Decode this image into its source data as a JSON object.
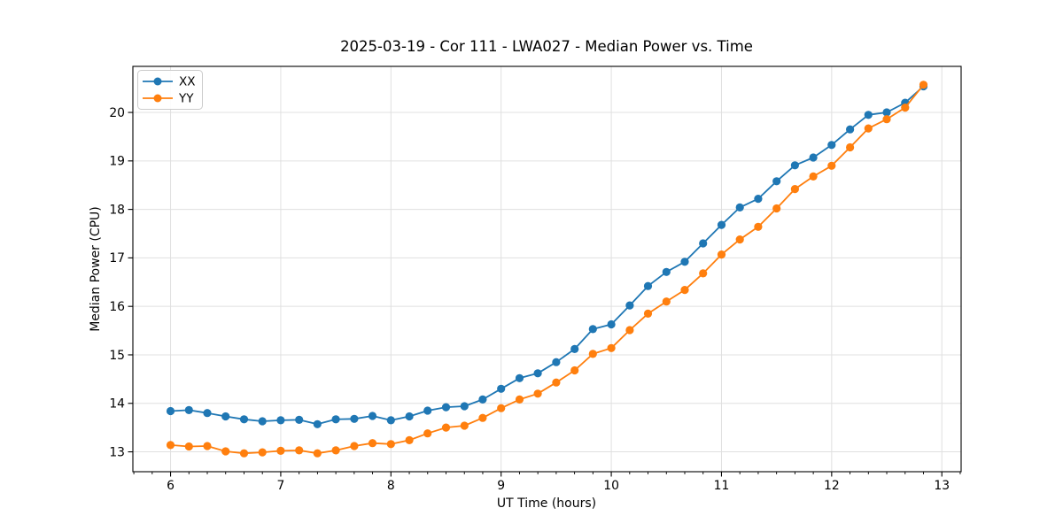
{
  "chart_data": {
    "type": "line",
    "title": "2025-03-19 - Cor 111 - LWA027 - Median Power vs. Time",
    "xlabel": "UT Time (hours)",
    "ylabel": "Median Power (CPU)",
    "xlim": [
      5.658,
      13.175
    ],
    "ylim": [
      12.59,
      20.95
    ],
    "xticks": [
      6,
      7,
      8,
      9,
      10,
      11,
      12,
      13
    ],
    "yticks": [
      13,
      14,
      15,
      16,
      17,
      18,
      19,
      20
    ],
    "x_minor_ticks_per_major": 6,
    "grid": true,
    "grid_color": "#e0e0e0",
    "frame_color": "#000000",
    "legend": {
      "position": "upper-left"
    },
    "x": [
      6.0,
      6.167,
      6.333,
      6.5,
      6.667,
      6.833,
      7.0,
      7.167,
      7.333,
      7.5,
      7.667,
      7.833,
      8.0,
      8.167,
      8.333,
      8.5,
      8.667,
      8.833,
      9.0,
      9.167,
      9.333,
      9.5,
      9.667,
      9.833,
      10.0,
      10.167,
      10.333,
      10.5,
      10.667,
      10.833,
      11.0,
      11.167,
      11.333,
      11.5,
      11.667,
      11.833,
      12.0,
      12.167,
      12.333,
      12.5,
      12.667,
      12.833
    ],
    "series": [
      {
        "name": "XX",
        "color": "#1f77b4",
        "marker": "circle",
        "values": [
          13.84,
          13.86,
          13.8,
          13.73,
          13.67,
          13.63,
          13.65,
          13.66,
          13.57,
          13.67,
          13.68,
          13.74,
          13.65,
          13.73,
          13.85,
          13.92,
          13.94,
          14.08,
          14.3,
          14.52,
          14.62,
          14.85,
          15.12,
          15.53,
          15.63,
          16.02,
          16.42,
          16.71,
          16.92,
          17.3,
          17.68,
          18.04,
          18.22,
          18.58,
          18.91,
          19.07,
          19.33,
          19.65,
          19.95,
          20.0,
          20.2,
          20.54
        ]
      },
      {
        "name": "YY",
        "color": "#ff7f0e",
        "marker": "circle",
        "values": [
          13.14,
          13.11,
          13.12,
          13.01,
          12.97,
          12.99,
          13.02,
          13.03,
          12.97,
          13.03,
          13.12,
          13.18,
          13.16,
          13.24,
          13.38,
          13.5,
          13.54,
          13.7,
          13.9,
          14.08,
          14.2,
          14.43,
          14.68,
          15.02,
          15.14,
          15.51,
          15.85,
          16.1,
          16.34,
          16.68,
          17.07,
          17.38,
          17.64,
          18.02,
          18.42,
          18.68,
          18.9,
          19.28,
          19.67,
          19.86,
          20.1,
          20.57
        ]
      }
    ]
  }
}
